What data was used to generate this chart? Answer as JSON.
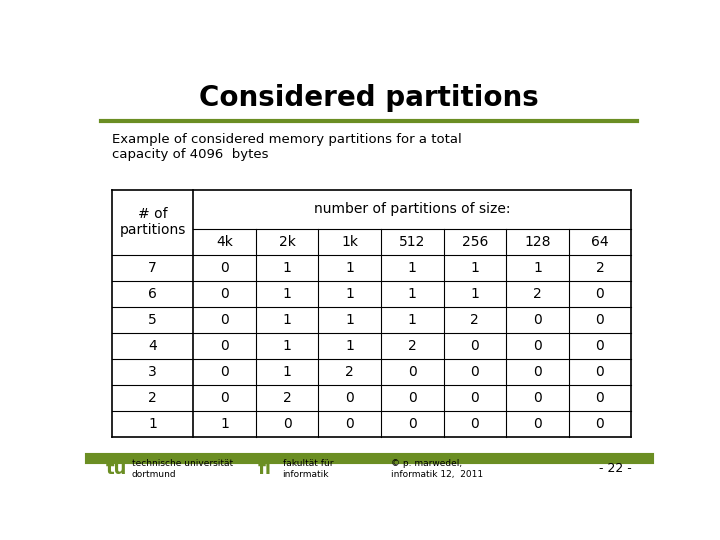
{
  "title": "Considered partitions",
  "subtitle": "Example of considered memory partitions for a total\ncapacity of 4096  bytes",
  "bg_color": "#ffffff",
  "title_color": "#000000",
  "green_line_color": "#6b8e23",
  "table_header_row1_col0": "# of\npartitions",
  "table_header_row1_col1": "number of partitions of size:",
  "table_header_row2": [
    "4k",
    "2k",
    "1k",
    "512",
    "256",
    "128",
    "64"
  ],
  "table_data": [
    [
      7,
      0,
      1,
      1,
      1,
      1,
      1,
      2
    ],
    [
      6,
      0,
      1,
      1,
      1,
      1,
      2,
      0
    ],
    [
      5,
      0,
      1,
      1,
      1,
      2,
      0,
      0
    ],
    [
      4,
      0,
      1,
      1,
      2,
      0,
      0,
      0
    ],
    [
      3,
      0,
      1,
      2,
      0,
      0,
      0,
      0
    ],
    [
      2,
      0,
      2,
      0,
      0,
      0,
      0,
      0
    ],
    [
      1,
      1,
      0,
      0,
      0,
      0,
      0,
      0
    ]
  ],
  "footer_tu_text": "tu",
  "footer_left": "technische universität\ndortmund",
  "footer_fi_text": "fi",
  "footer_center_left": "fakultät für\ninformatik",
  "footer_center": "© p. marwedel,\ninformatik 12,  2011",
  "footer_right": "- 22 -",
  "green_color": "#6b8e23",
  "black_color": "#000000",
  "font_family": "DejaVu Sans"
}
